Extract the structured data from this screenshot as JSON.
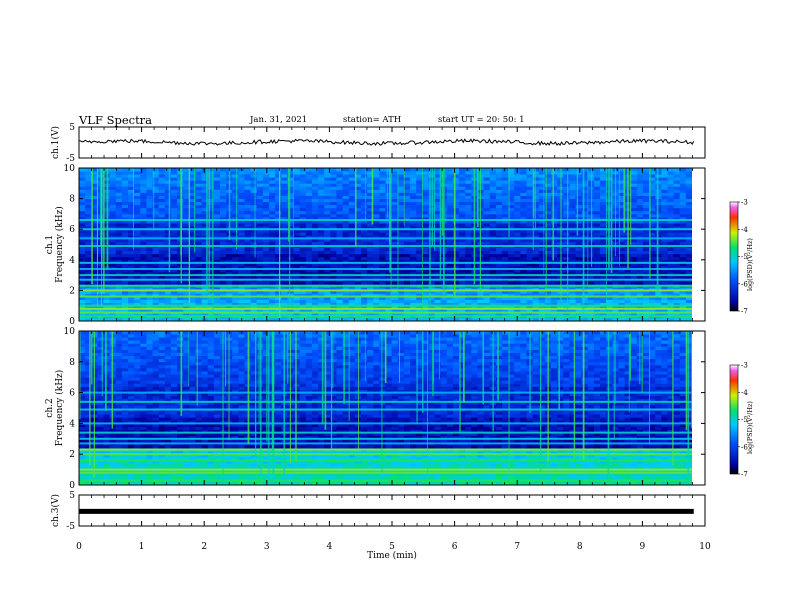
{
  "header": {
    "title": "VLF Spectra",
    "date": "Jan. 31, 2021",
    "station": "station= ATH",
    "start": "start  UT =   20: 50: 1"
  },
  "chart_data": [
    {
      "type": "line",
      "panel": "ch1-voltage",
      "ylabel": "ch.1(V)",
      "ylim": [
        -5,
        5
      ],
      "ytick_labels": [
        "5",
        "-5"
      ],
      "xlim": [
        0,
        10
      ],
      "series": [
        {
          "x": [
            0,
            9.82
          ],
          "values": [
            0.1,
            0.1
          ]
        }
      ]
    },
    {
      "type": "heatmap",
      "panel": "ch1-spectrogram",
      "ylabel": "ch.1\nFrequency (kHz)",
      "ylim": [
        0,
        10
      ],
      "ytick_labels": [
        "0",
        "2",
        "4",
        "6",
        "8",
        "10"
      ],
      "xlim": [
        0,
        10
      ],
      "colorbar": {
        "label": "log(PSD)(V²/Hz)",
        "ticks": [
          "-3",
          "-4",
          "-5",
          "-6",
          "-7"
        ],
        "range": [
          -7,
          -3
        ]
      },
      "bands_khz": [
        0.3,
        0.55,
        0.8,
        1.0,
        1.6,
        2.0,
        2.3,
        2.7,
        3.0,
        3.4,
        3.8,
        4.9,
        5.4,
        6.0,
        6.6
      ]
    },
    {
      "type": "heatmap",
      "panel": "ch2-spectrogram",
      "ylabel": "ch.2\nFrequency (kHz)",
      "ylim": [
        0,
        10
      ],
      "ytick_labels": [
        "0",
        "2",
        "4",
        "6",
        "8",
        "10"
      ],
      "xlim": [
        0,
        10
      ],
      "colorbar": {
        "label": "log(PSD)(V²/Hz)",
        "ticks": [
          "-3",
          "-4",
          "-5",
          "-6",
          "-7"
        ],
        "range": [
          -7,
          -3
        ]
      },
      "bands_khz": [
        0.3,
        0.8,
        1.0,
        1.6,
        2.0,
        2.3,
        2.7,
        3.0,
        3.4,
        4.0,
        4.9,
        5.4,
        6.0
      ]
    },
    {
      "type": "line",
      "panel": "ch3-voltage",
      "ylabel": "ch.3(V)",
      "ylim": [
        -5,
        5
      ],
      "ytick_labels": [
        "5",
        "-5"
      ],
      "xlim": [
        0,
        10
      ],
      "xlabel": "Time (min)",
      "xtick_labels": [
        "0",
        "1",
        "2",
        "3",
        "4",
        "5",
        "6",
        "7",
        "8",
        "9",
        "10"
      ],
      "series": [
        {
          "x": [
            0,
            9.82
          ],
          "values": [
            -0.3,
            -0.3
          ]
        }
      ]
    }
  ]
}
